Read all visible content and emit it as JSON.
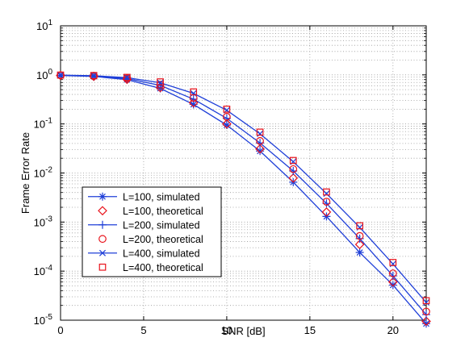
{
  "chart_data": {
    "type": "line",
    "xlabel": "SNR [dB]",
    "ylabel": "Frame Error Rate",
    "xlim": [
      0,
      22
    ],
    "ylim": [
      1e-05,
      10
    ],
    "yscale": "log",
    "grid": true,
    "legend_position": "bottom-left",
    "x_ticks": [
      0,
      5,
      10,
      15,
      20
    ],
    "y_ticks": [
      {
        "value": 1e-05,
        "base": "10",
        "exp": "-5"
      },
      {
        "value": 0.0001,
        "base": "10",
        "exp": "-4"
      },
      {
        "value": 0.001,
        "base": "10",
        "exp": "-3"
      },
      {
        "value": 0.01,
        "base": "10",
        "exp": "-2"
      },
      {
        "value": 0.1,
        "base": "10",
        "exp": "-1"
      },
      {
        "value": 1,
        "base": "10",
        "exp": "0"
      },
      {
        "value": 10,
        "base": "10",
        "exp": "1"
      }
    ],
    "x": [
      0,
      2,
      4,
      6,
      8,
      10,
      12,
      14,
      16,
      18,
      20,
      22
    ],
    "series": [
      {
        "name": "L=100, simulated",
        "color": "#1f3fd8",
        "marker": "asterisk",
        "line": true,
        "values": [
          0.97,
          0.93,
          0.8,
          0.53,
          0.25,
          0.095,
          0.028,
          0.0065,
          0.0013,
          0.00024,
          5.2e-05,
          8.5e-06
        ]
      },
      {
        "name": "L=100, theoretical",
        "color": "#e8121b",
        "marker": "diamond",
        "line": false,
        "values": [
          0.97,
          0.93,
          0.81,
          0.55,
          0.27,
          0.1,
          0.031,
          0.0079,
          0.0016,
          0.00035,
          6e-05,
          9.5e-06
        ]
      },
      {
        "name": "L=200, simulated",
        "color": "#1f3fd8",
        "marker": "plus",
        "line": true,
        "values": [
          0.98,
          0.95,
          0.84,
          0.61,
          0.32,
          0.13,
          0.041,
          0.011,
          0.0024,
          0.00046,
          8e-05,
          1.3e-05
        ]
      },
      {
        "name": "L=200, theoretical",
        "color": "#e8121b",
        "marker": "circle",
        "line": false,
        "values": [
          0.98,
          0.95,
          0.85,
          0.63,
          0.34,
          0.14,
          0.045,
          0.012,
          0.0026,
          0.00052,
          9e-05,
          1.5e-05
        ]
      },
      {
        "name": "L=400, simulated",
        "color": "#1f3fd8",
        "marker": "x",
        "line": true,
        "values": [
          0.99,
          0.96,
          0.88,
          0.69,
          0.42,
          0.19,
          0.063,
          0.017,
          0.0038,
          0.00078,
          0.00014,
          2.3e-05
        ]
      },
      {
        "name": "L=400, theoretical",
        "color": "#e8121b",
        "marker": "square",
        "line": false,
        "values": [
          0.99,
          0.97,
          0.89,
          0.72,
          0.45,
          0.2,
          0.068,
          0.018,
          0.0041,
          0.00084,
          0.00015,
          2.5e-05
        ]
      }
    ]
  }
}
